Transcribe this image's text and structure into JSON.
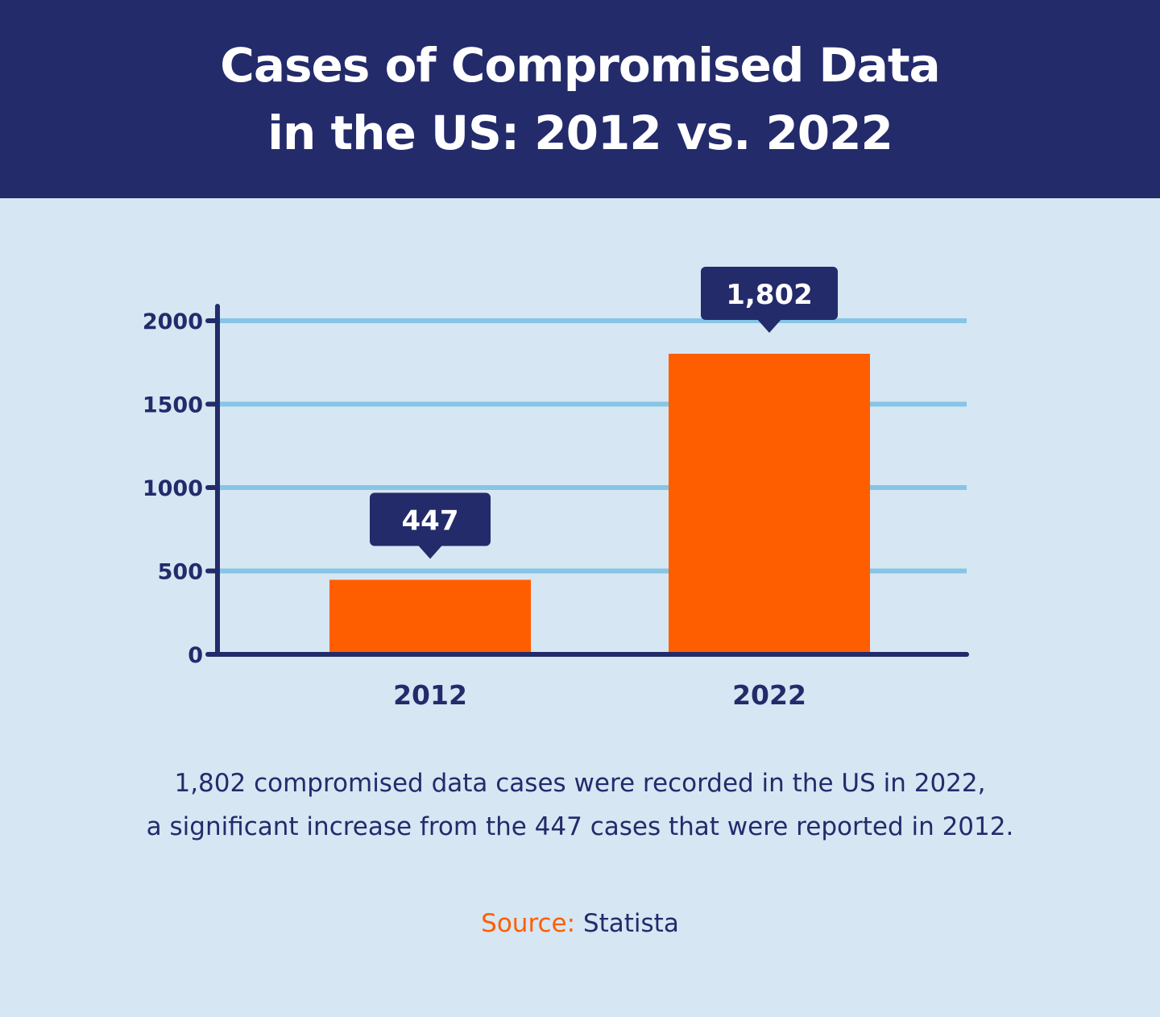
{
  "title_line1": "Cases of Compromised Data",
  "title_line2": "in the US: 2012 vs. 2022",
  "chart_data": {
    "type": "bar",
    "categories": [
      "2012",
      "2022"
    ],
    "values": [
      447,
      1802
    ],
    "data_labels": [
      "447",
      "1,802"
    ],
    "ylim": [
      0,
      2000
    ],
    "yticks": [
      0,
      500,
      1000,
      1500,
      2000
    ],
    "grid": true,
    "colors": {
      "bar": "#ff5e00",
      "grid": "#86c5e5",
      "axis": "#232b6b",
      "label_box": "#232b6b"
    }
  },
  "caption_line1": "1,802 compromised data cases were recorded in the US in 2022,",
  "caption_line2": "a significant increase from the 447 cases that were reported in 2012.",
  "source_label": "Source:",
  "source_value": " Statista"
}
